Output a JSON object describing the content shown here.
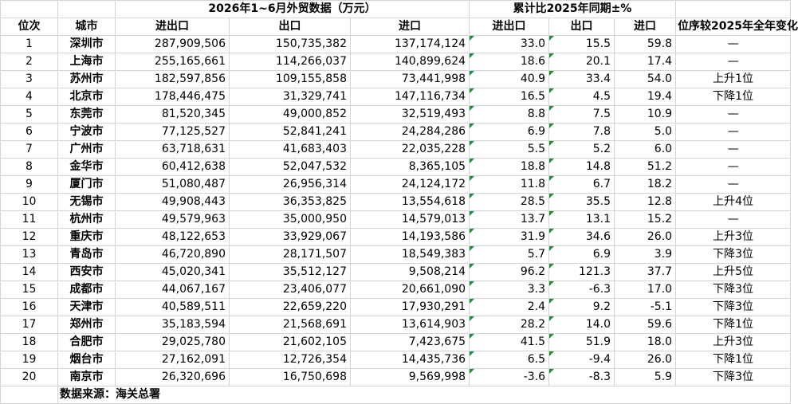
{
  "header": {
    "title_main": "2026年1~6月外贸数据（万元）",
    "title_growth": "累计比2025年同期±%",
    "col_rank": "位次",
    "col_city": "城市",
    "col_total": "进出口",
    "col_export": "出口",
    "col_import": "进口",
    "col_g_total": "进出口",
    "col_g_export": "出口",
    "col_g_import": "进口",
    "col_change": "位序较2025年全年变化"
  },
  "rows": [
    {
      "rank": "1",
      "city": "深圳市",
      "total": "287,909,506",
      "export": "150,735,382",
      "import": "137,174,124",
      "g_total": "33.0",
      "g_export": "15.5",
      "g_import": "59.8",
      "change": "—"
    },
    {
      "rank": "2",
      "city": "上海市",
      "total": "255,165,661",
      "export": "114,266,037",
      "import": "140,899,624",
      "g_total": "18.6",
      "g_export": "20.1",
      "g_import": "17.4",
      "change": "—"
    },
    {
      "rank": "3",
      "city": "苏州市",
      "total": "182,597,856",
      "export": "109,155,858",
      "import": "73,441,998",
      "g_total": "40.9",
      "g_export": "33.4",
      "g_import": "54.0",
      "change": "上升1位"
    },
    {
      "rank": "4",
      "city": "北京市",
      "total": "178,446,475",
      "export": "31,329,741",
      "import": "147,116,734",
      "g_total": "16.5",
      "g_export": "4.5",
      "g_import": "19.4",
      "change": "下降1位"
    },
    {
      "rank": "5",
      "city": "东莞市",
      "total": "81,520,345",
      "export": "49,000,852",
      "import": "32,519,493",
      "g_total": "8.8",
      "g_export": "7.5",
      "g_import": "10.9",
      "change": "—"
    },
    {
      "rank": "6",
      "city": "宁波市",
      "total": "77,125,527",
      "export": "52,841,241",
      "import": "24,284,286",
      "g_total": "6.9",
      "g_export": "7.8",
      "g_import": "5.0",
      "change": "—"
    },
    {
      "rank": "7",
      "city": "广州市",
      "total": "63,718,631",
      "export": "41,683,403",
      "import": "22,035,228",
      "g_total": "5.5",
      "g_export": "5.2",
      "g_import": "6.0",
      "change": "—"
    },
    {
      "rank": "8",
      "city": "金华市",
      "total": "60,412,638",
      "export": "52,047,532",
      "import": "8,365,105",
      "g_total": "18.8",
      "g_export": "14.8",
      "g_import": "51.2",
      "change": "—"
    },
    {
      "rank": "9",
      "city": "厦门市",
      "total": "51,080,487",
      "export": "26,956,314",
      "import": "24,124,172",
      "g_total": "11.8",
      "g_export": "6.7",
      "g_import": "18.2",
      "change": "—"
    },
    {
      "rank": "10",
      "city": "无锡市",
      "total": "49,908,443",
      "export": "36,353,825",
      "import": "13,554,618",
      "g_total": "28.5",
      "g_export": "35.5",
      "g_import": "12.8",
      "change": "上升4位"
    },
    {
      "rank": "11",
      "city": "杭州市",
      "total": "49,579,963",
      "export": "35,000,950",
      "import": "14,579,013",
      "g_total": "13.7",
      "g_export": "13.1",
      "g_import": "15.2",
      "change": "—"
    },
    {
      "rank": "12",
      "city": "重庆市",
      "total": "48,122,653",
      "export": "33,929,067",
      "import": "14,193,586",
      "g_total": "31.9",
      "g_export": "34.6",
      "g_import": "26.0",
      "change": "上升3位"
    },
    {
      "rank": "13",
      "city": "青岛市",
      "total": "46,720,890",
      "export": "28,171,507",
      "import": "18,549,383",
      "g_total": "5.7",
      "g_export": "6.9",
      "g_import": "3.9",
      "change": "下降3位"
    },
    {
      "rank": "14",
      "city": "西安市",
      "total": "45,020,341",
      "export": "35,512,127",
      "import": "9,508,214",
      "g_total": "96.2",
      "g_export": "121.3",
      "g_import": "37.7",
      "change": "上升5位"
    },
    {
      "rank": "15",
      "city": "成都市",
      "total": "44,067,167",
      "export": "23,406,077",
      "import": "20,661,090",
      "g_total": "3.3",
      "g_export": "-6.3",
      "g_import": "17.0",
      "change": "下降3位"
    },
    {
      "rank": "16",
      "city": "天津市",
      "total": "40,589,511",
      "export": "22,659,220",
      "import": "17,930,291",
      "g_total": "2.4",
      "g_export": "9.2",
      "g_import": "-5.1",
      "change": "下降3位"
    },
    {
      "rank": "17",
      "city": "郑州市",
      "total": "35,183,594",
      "export": "21,568,691",
      "import": "13,614,903",
      "g_total": "28.2",
      "g_export": "14.0",
      "g_import": "59.6",
      "change": "下降1位"
    },
    {
      "rank": "18",
      "city": "合肥市",
      "total": "29,025,780",
      "export": "21,602,105",
      "import": "7,423,675",
      "g_total": "41.5",
      "g_export": "51.9",
      "g_import": "18.0",
      "change": "上升3位"
    },
    {
      "rank": "19",
      "city": "烟台市",
      "total": "27,162,091",
      "export": "12,726,354",
      "import": "14,435,736",
      "g_total": "6.5",
      "g_export": "-9.4",
      "g_import": "26.0",
      "change": "下降1位"
    },
    {
      "rank": "20",
      "city": "南京市",
      "total": "26,320,696",
      "export": "16,750,698",
      "import": "9,569,998",
      "g_total": "-3.6",
      "g_export": "-8.3",
      "g_import": "5.9",
      "change": "下降3位"
    }
  ],
  "footer": {
    "source": "数据来源：海关总署"
  },
  "colors": {
    "grid": "#d4d4d4",
    "error_triangle": "#1f8f3a"
  }
}
